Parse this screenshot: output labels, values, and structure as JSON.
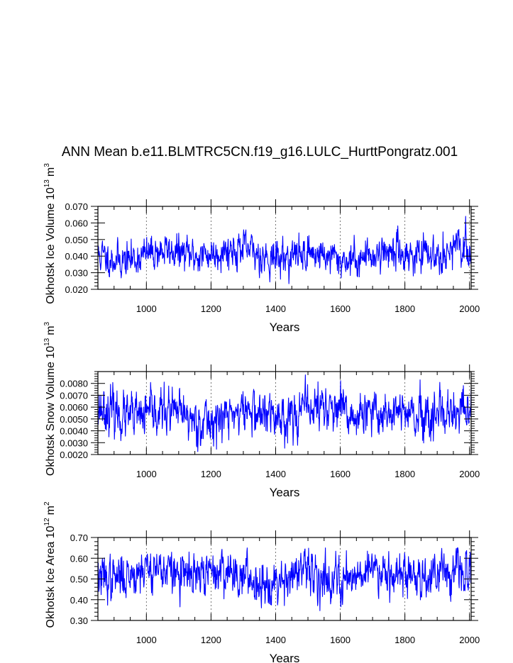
{
  "title": "ANN Mean b.e11.BLMTRC5CN.f19_g16.LULC_HurttPongratz.001",
  "chart_data": [
    {
      "type": "line",
      "title": "ANN Mean b.e11.BLMTRC5CN.f19_g16.LULC_HurttPongratz.001",
      "ylabel": "Okhotsk Ice Volume 10",
      "ylabel_exp": "13",
      "ylabel_unit": "m",
      "ylabel_unit_exp": "3",
      "xlabel": "Years",
      "xlim": [
        850,
        2005
      ],
      "ylim": [
        0.02,
        0.07
      ],
      "xticks": [
        1000,
        1200,
        1400,
        1600,
        1800,
        2000
      ],
      "xtick_labels": [
        "1000",
        "1200",
        "1400",
        "1600",
        "1800",
        "2000"
      ],
      "yticks": [
        0.02,
        0.03,
        0.04,
        0.05,
        0.06,
        0.07
      ],
      "ytick_labels": [
        "0.020",
        "0.030",
        "0.040",
        "0.050",
        "0.060",
        "0.070"
      ],
      "series": [
        {
          "name": "Okhotsk Ice Volume",
          "color": "#0000ff",
          "mean": 0.041,
          "sd": 0.0055,
          "min": 0.02,
          "max": 0.065,
          "seed": 11
        }
      ]
    },
    {
      "type": "line",
      "ylabel": "Okhotsk Snow Volume 10",
      "ylabel_exp": "13",
      "ylabel_unit": "m",
      "ylabel_unit_exp": "3",
      "xlabel": "Years",
      "xlim": [
        850,
        2005
      ],
      "ylim": [
        0.002,
        0.009
      ],
      "xticks": [
        1000,
        1200,
        1400,
        1600,
        1800,
        2000
      ],
      "xtick_labels": [
        "1000",
        "1200",
        "1400",
        "1600",
        "1800",
        "2000"
      ],
      "yticks": [
        0.002,
        0.003,
        0.004,
        0.005,
        0.006,
        0.007,
        0.008
      ],
      "ytick_labels": [
        "0.0020",
        "0.0030",
        "0.0040",
        "0.0050",
        "0.0060",
        "0.0070",
        "0.0080"
      ],
      "series": [
        {
          "name": "Okhotsk Snow Volume",
          "color": "#0000ff",
          "mean": 0.0054,
          "sd": 0.001,
          "min": 0.0021,
          "max": 0.0089,
          "seed": 23
        }
      ]
    },
    {
      "type": "line",
      "ylabel": "Okhotsk Ice Area 10",
      "ylabel_exp": "12",
      "ylabel_unit": "m",
      "ylabel_unit_exp": "2",
      "xlabel": "Years",
      "xlim": [
        850,
        2005
      ],
      "ylim": [
        0.3,
        0.7
      ],
      "xticks": [
        1000,
        1200,
        1400,
        1600,
        1800,
        2000
      ],
      "xtick_labels": [
        "1000",
        "1200",
        "1400",
        "1600",
        "1800",
        "2000"
      ],
      "yticks": [
        0.3,
        0.4,
        0.5,
        0.6,
        0.7
      ],
      "ytick_labels": [
        "0.30",
        "0.40",
        "0.50",
        "0.60",
        "0.70"
      ],
      "series": [
        {
          "name": "Okhotsk Ice Area",
          "color": "#0000ff",
          "mean": 0.52,
          "sd": 0.055,
          "min": 0.33,
          "max": 0.65,
          "seed": 37
        }
      ]
    }
  ]
}
